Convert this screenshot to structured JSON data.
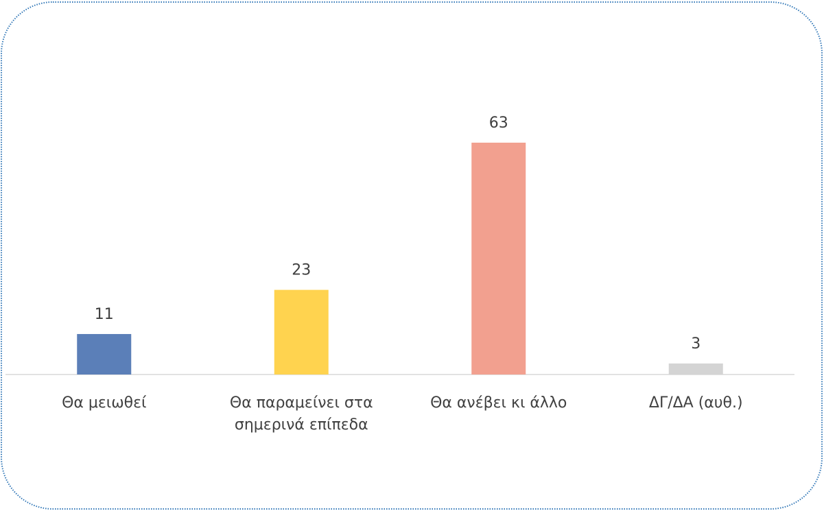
{
  "chart_data": {
    "type": "bar",
    "categories": [
      "Θα μειωθεί",
      "Θα παραμείνει στα σημερινά επίπεδα",
      "Θα ανέβει κι άλλο",
      "ΔΓ/ΔΑ (αυθ.)"
    ],
    "values": [
      11,
      23,
      63,
      3
    ],
    "colors": [
      "#5b7fb8",
      "#ffd34f",
      "#f2a08f",
      "#d4d4d4"
    ]
  }
}
